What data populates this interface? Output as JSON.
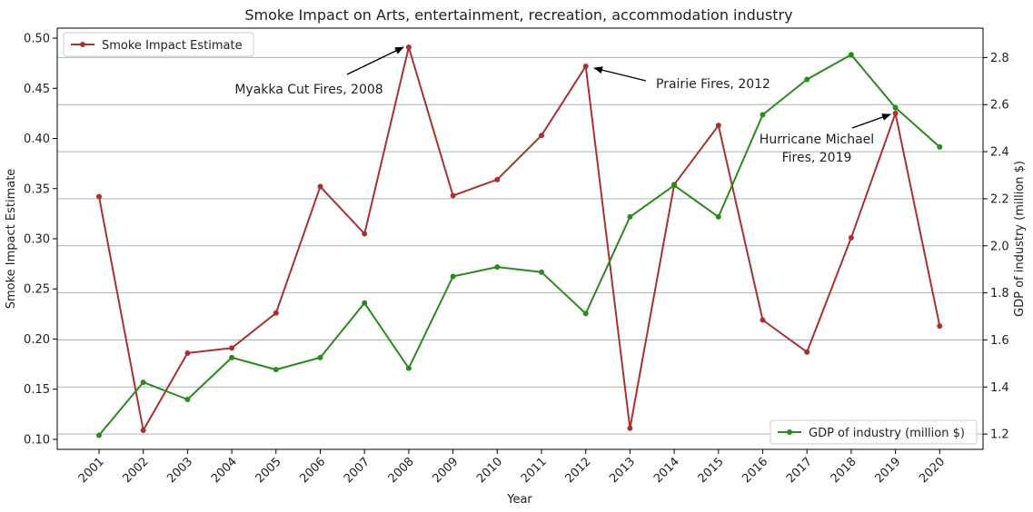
{
  "chart_data": {
    "type": "line",
    "title": "Smoke Impact on Arts, entertainment, recreation, accommodation industry",
    "xlabel": "Year",
    "ylabel_left": "Smoke Impact Estimate",
    "ylabel_right": "GDP of industry (million $)",
    "categories": [
      "2001",
      "2002",
      "2003",
      "2004",
      "2005",
      "2006",
      "2007",
      "2008",
      "2009",
      "2010",
      "2011",
      "2012",
      "2013",
      "2014",
      "2015",
      "2016",
      "2017",
      "2018",
      "2019",
      "2020"
    ],
    "left_axis": {
      "min": 0.09,
      "max": 0.51,
      "ticks": [
        "0.10",
        "0.15",
        "0.20",
        "0.25",
        "0.30",
        "0.35",
        "0.40",
        "0.45",
        "0.50"
      ],
      "tick_values": [
        0.1,
        0.15,
        0.2,
        0.25,
        0.3,
        0.35,
        0.4,
        0.45,
        0.5
      ]
    },
    "right_axis": {
      "min": 1.135,
      "max": 2.925,
      "ticks": [
        "1.2",
        "1.4",
        "1.6",
        "1.8",
        "2.0",
        "2.2",
        "2.4",
        "2.6",
        "2.8"
      ],
      "tick_values": [
        1.2,
        1.4,
        1.6,
        1.8,
        2.0,
        2.2,
        2.4,
        2.6,
        2.8
      ]
    },
    "grid": "horizontal-right-axis",
    "series": [
      {
        "name": "Smoke Impact Estimate",
        "axis": "left",
        "color": "#a83230",
        "legend_position": "top-left",
        "values": [
          0.342,
          0.109,
          0.186,
          0.191,
          0.226,
          0.352,
          0.305,
          0.491,
          0.343,
          0.359,
          0.403,
          0.472,
          0.111,
          0.354,
          0.413,
          0.219,
          0.187,
          0.301,
          0.425,
          0.213
        ]
      },
      {
        "name": "GDP of industry (million $)",
        "axis": "right",
        "color": "#2a8a1e",
        "legend_position": "bottom-right",
        "values": [
          1.195,
          1.42,
          1.347,
          1.525,
          1.474,
          1.525,
          1.757,
          1.48,
          1.87,
          1.91,
          1.888,
          1.712,
          2.123,
          2.257,
          2.123,
          2.557,
          2.707,
          2.812,
          2.587,
          2.42
        ]
      }
    ],
    "annotations": [
      {
        "lines": [
          "Myakka Cut Fires, 2008"
        ],
        "year": "2008"
      },
      {
        "lines": [
          "Prairie Fires, 2012"
        ],
        "year": "2012"
      },
      {
        "lines": [
          "Hurricane Michael",
          "Fires, 2019"
        ],
        "year": "2019"
      }
    ]
  }
}
